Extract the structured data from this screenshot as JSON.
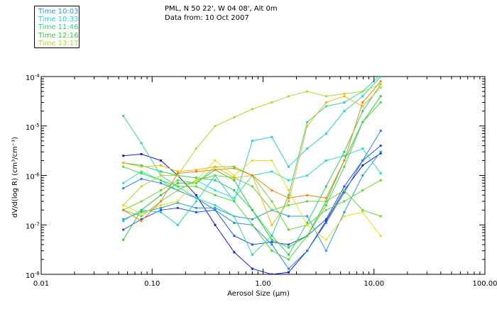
{
  "header": {
    "line1": "PML, N 50 22', W 04 08', Alt 0m",
    "line2": "Data from: 10 Oct 2007"
  },
  "legend": [
    {
      "label": "Time 10:03",
      "color": "#2b9bd8"
    },
    {
      "label": "Time 10:33",
      "color": "#22cfd8"
    },
    {
      "label": "Time 11:46",
      "color": "#2fd37a"
    },
    {
      "label": "Time 12:16",
      "color": "#39c835"
    },
    {
      "label": "Time 13:17",
      "color": "#a6de2a"
    }
  ],
  "chart_data": {
    "type": "line",
    "x_scale": "log",
    "y_scale": "log",
    "xlim": [
      0.01,
      100
    ],
    "ylim": [
      1e-08,
      0.0001
    ],
    "xlabel": "Aerosol Size (μm)",
    "ylabel": "dV/d(log R) (cm³/cm⁻³)",
    "x_ticks": [
      {
        "value": 0.01,
        "label": "0.01"
      },
      {
        "value": 0.1,
        "label": "0.10"
      },
      {
        "value": 1,
        "label": "1.00"
      },
      {
        "value": 10,
        "label": "10.00"
      },
      {
        "value": 100,
        "label": "100.00"
      }
    ],
    "y_ticks": [
      {
        "value": 1e-08,
        "label": "10",
        "exp": "-8"
      },
      {
        "value": 1e-07,
        "label": "10",
        "exp": "-7"
      },
      {
        "value": 1e-06,
        "label": "10",
        "exp": "-6"
      },
      {
        "value": 1e-05,
        "label": "10",
        "exp": "-5"
      },
      {
        "value": 0.0001,
        "label": "10",
        "exp": "-4"
      }
    ],
    "x": [
      0.055,
      0.08,
      0.12,
      0.17,
      0.25,
      0.37,
      0.55,
      0.8,
      1.2,
      1.7,
      2.5,
      3.7,
      5.4,
      7.9,
      11.5
    ],
    "series": [
      {
        "color": "#1420c8",
        "values": [
          2.5e-06,
          2.7e-06,
          2e-06,
          1e-06,
          4e-07,
          1e-07,
          2.8e-08,
          1.3e-08,
          1e-08,
          1.1e-08,
          3e-08,
          1.2e-07,
          5e-07,
          1.6e-06,
          2.8e-06
        ]
      },
      {
        "color": "#1a55d8",
        "values": [
          8e-08,
          1.3e-07,
          2e-07,
          2.2e-07,
          1.8e-07,
          2e-07,
          6e-08,
          4e-08,
          4.5e-08,
          4e-08,
          6e-08,
          1.3e-07,
          6e-07,
          2e-06,
          4e-06
        ]
      },
      {
        "color": "#2b7fe0",
        "values": [
          5.5e-07,
          8.5e-07,
          7e-07,
          5e-07,
          3.5e-07,
          2e-07,
          1.1e-07,
          1e-07,
          4e-08,
          1.3e-08,
          3e-08,
          1.1e-07,
          4.5e-07,
          2e-06,
          8e-06
        ]
      },
      {
        "color": "#2b9bd8",
        "values": [
          1.3e-07,
          1.8e-07,
          2.2e-07,
          2.8e-07,
          2.2e-07,
          2.2e-07,
          1.5e-07,
          1.3e-07,
          2e-07,
          1.5e-07,
          1.5e-07,
          3e-08,
          1.8e-07,
          1e-06,
          3e-06
        ]
      },
      {
        "color": "#22cfd8",
        "values": [
          1.2e-07,
          2e-07,
          1.8e-07,
          1e-07,
          3e-07,
          1e-06,
          3e-07,
          5e-06,
          6e-06,
          1.5e-06,
          3.5e-06,
          7e-06,
          2e-05,
          4e-05,
          0.0001
        ]
      },
      {
        "color": "#2ae0c8",
        "values": [
          7e-07,
          1.2e-06,
          8e-07,
          5e-07,
          8e-07,
          5e-07,
          3.5e-07,
          1e-06,
          1.2e-06,
          8e-07,
          1e-06,
          2e-06,
          2.5e-06,
          3.5e-06,
          1.1e-06
        ]
      },
      {
        "color": "#34d6a0",
        "values": [
          1.6e-05,
          4.5e-06,
          1e-06,
          6e-07,
          3.5e-07,
          2.5e-07,
          1.5e-07,
          2.5e-08,
          6e-08,
          4e-07,
          1.2e-05,
          2.5e-05,
          3e-05,
          5e-05,
          0.00011
        ]
      },
      {
        "color": "#28d16a",
        "values": [
          1.8e-06,
          1.6e-06,
          1.2e-06,
          1e-06,
          9e-07,
          8e-07,
          5e-07,
          2e-07,
          6e-08,
          2.5e-08,
          1.1e-07,
          6e-07,
          3e-06,
          2e-05,
          7e-05
        ]
      },
      {
        "color": "#35c83a",
        "values": [
          5e-08,
          2e-07,
          4e-07,
          7e-07,
          7e-07,
          1.3e-06,
          8e-07,
          2e-07,
          5e-08,
          3.5e-08,
          6e-08,
          3e-07,
          2e-06,
          1.2e-05,
          4e-05
        ]
      },
      {
        "color": "#4ad83a",
        "values": [
          1.5e-06,
          1.1e-06,
          8e-07,
          6e-07,
          6e-07,
          4e-07,
          3e-07,
          1e-07,
          3e-08,
          2e-08,
          6e-08,
          2.5e-07,
          1.5e-06,
          1.2e-05,
          3e-05
        ]
      },
      {
        "color": "#66d83a",
        "values": [
          2e-07,
          3e-07,
          5e-07,
          8e-07,
          7e-07,
          1.5e-06,
          1.5e-06,
          1e-06,
          3e-07,
          8e-08,
          1e-07,
          2e-07,
          3e-07,
          5e-07,
          8e-07
        ]
      },
      {
        "color": "#6fd040",
        "values": [
          2e-07,
          1.5e-07,
          3e-07,
          5e-07,
          8e-07,
          1e-06,
          9e-07,
          6e-07,
          2e-07,
          2.5e-07,
          3e-07,
          3e-07,
          5e-07,
          2e-07,
          1.5e-07
        ]
      },
      {
        "color": "#a6de2a",
        "values": [
          2.5e-07,
          6e-07,
          1e-06,
          1e-06,
          3.5e-06,
          1e-05,
          1.5e-05,
          2.2e-05,
          3e-05,
          4e-05,
          5e-05,
          4e-05,
          4.5e-05,
          5e-05,
          7e-05
        ]
      },
      {
        "color": "#ecdd1a",
        "values": [
          2.5e-07,
          1.7e-07,
          2.5e-07,
          3e-07,
          8e-07,
          2e-06,
          1e-06,
          2e-06,
          2e-06,
          5e-07,
          1e-07,
          5e-08,
          1.5e-07,
          1.8e-07,
          6e-08
        ]
      },
      {
        "color": "#f4b418",
        "values": [
          1.8e-06,
          1.5e-06,
          1.6e-06,
          1.2e-06,
          1.3e-06,
          1.5e-06,
          9e-07,
          1e-06,
          1e-07,
          3e-07,
          1e-05,
          3e-05,
          4e-05,
          2.5e-05,
          6e-05
        ]
      },
      {
        "color": "#f0880f",
        "values": [
          2e-07,
          1.2e-07,
          3e-07,
          1.1e-06,
          1.2e-06,
          1.3e-06,
          1.4e-06,
          1e-06,
          5e-07,
          3.5e-07,
          4e-07,
          3.5e-07,
          2e-06,
          3e-05,
          8e-05
        ]
      }
    ]
  }
}
